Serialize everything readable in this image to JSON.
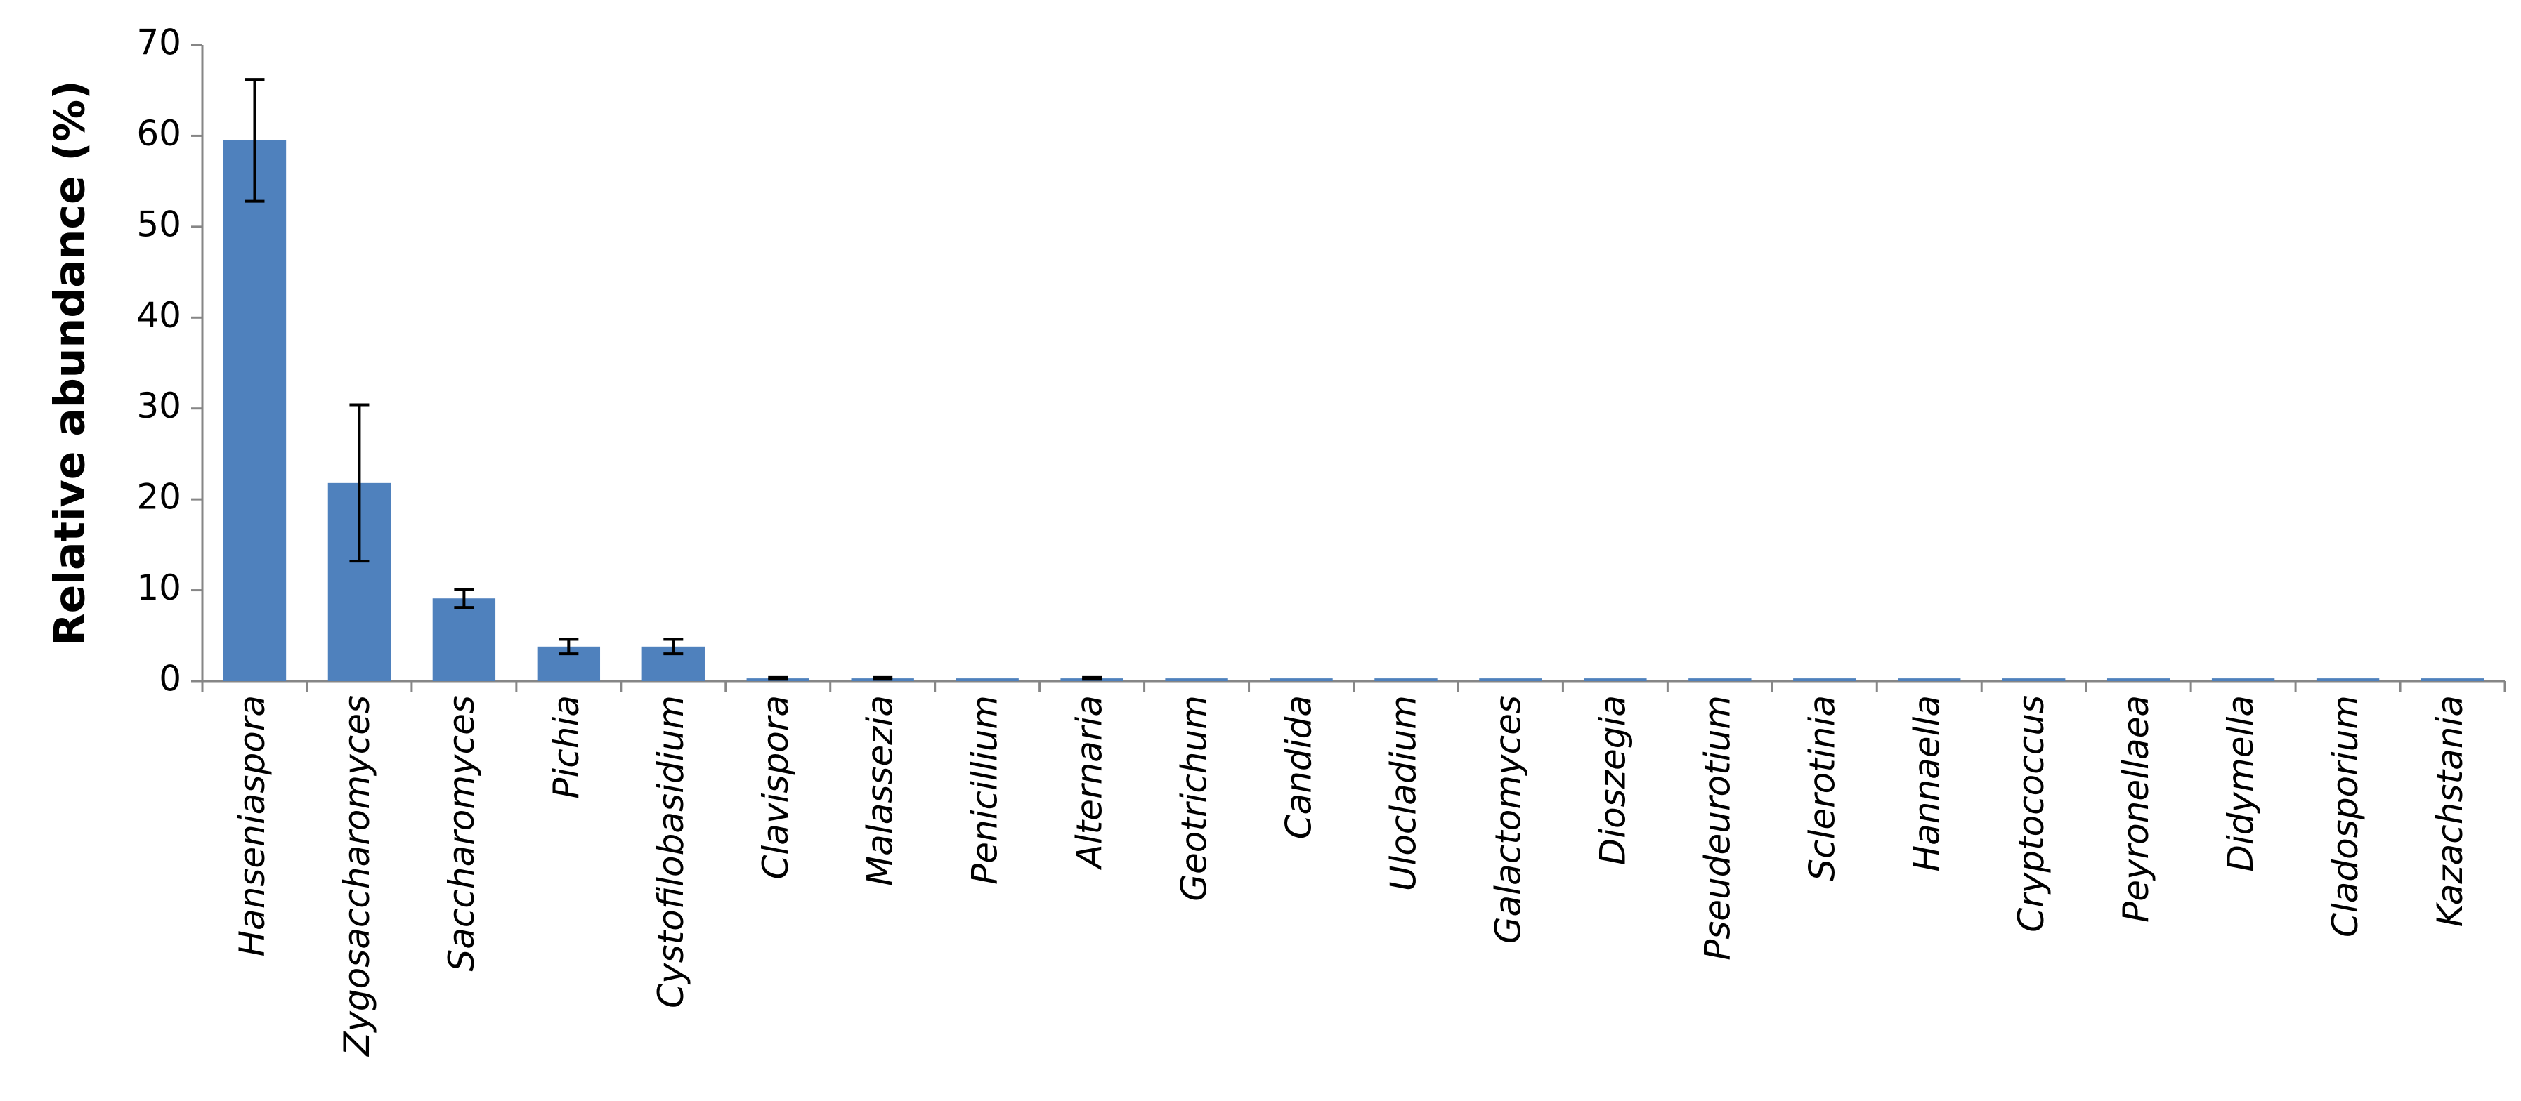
{
  "chart_data": {
    "type": "bar",
    "y_label": "Relative abundance (%)",
    "categories": [
      "Hanseniaspora",
      "Zygosaccharomyces",
      "Saccharomyces",
      "Pichia",
      "Cystofilobasidium",
      "Clavispora",
      "Malassezia",
      "Penicillium",
      "Alternaria",
      "Geotrichum",
      "Candida",
      "Ulocladium",
      "Galactomyces",
      "Dioszegia",
      "Pseudeurotium",
      "Sclerotinia",
      "Hannaella",
      "Cryptococcus",
      "Peyronellaea",
      "Didymella",
      "Cladosporium",
      "Kazachstania"
    ],
    "values": [
      59.5,
      21.8,
      9.1,
      3.8,
      3.8,
      0.3,
      0.3,
      0.3,
      0.3,
      0.3,
      0.3,
      0.3,
      0.3,
      0.3,
      0.3,
      0.3,
      0.3,
      0.3,
      0.3,
      0.3,
      0.3,
      0.3
    ],
    "errors": [
      6.7,
      8.6,
      1,
      0.8,
      0.8,
      0.1,
      0.1,
      null,
      0.1,
      null,
      null,
      null,
      null,
      null,
      null,
      null,
      null,
      null,
      null,
      null,
      null,
      null
    ],
    "color": "#4f81bd",
    "ylim": [
      0,
      70
    ],
    "yticks": [
      0,
      10,
      20,
      30,
      40,
      50,
      60,
      70
    ],
    "grid": false
  }
}
